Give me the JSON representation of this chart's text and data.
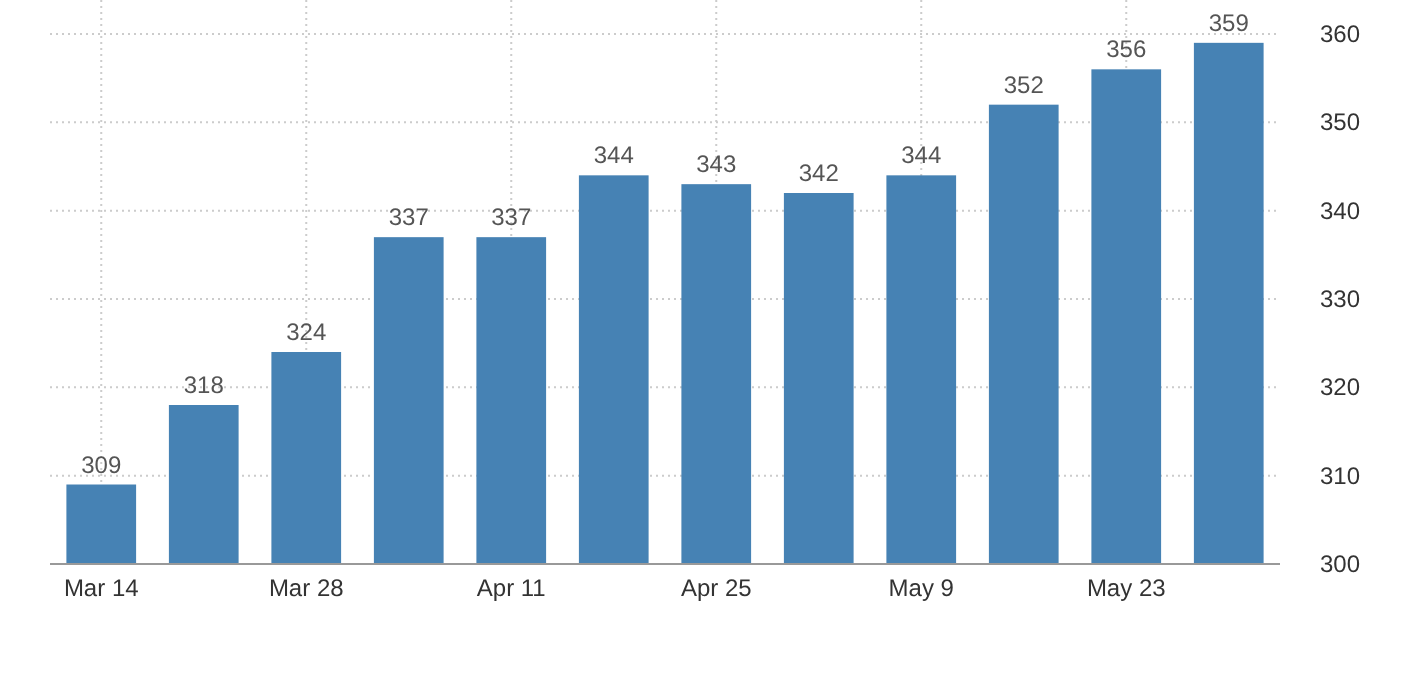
{
  "chart_data": {
    "type": "bar",
    "categories": [
      "Mar 14",
      null,
      "Mar 28",
      null,
      "Apr 11",
      null,
      "Apr 25",
      null,
      "May 9",
      null,
      "May 23",
      null
    ],
    "values": [
      309,
      318,
      324,
      337,
      337,
      344,
      343,
      342,
      344,
      352,
      356,
      359
    ],
    "color": "#4682b4",
    "ylim": [
      300,
      360
    ],
    "yticks": [
      300,
      310,
      320,
      330,
      340,
      350,
      360
    ],
    "grid": true,
    "data_labels": true
  }
}
